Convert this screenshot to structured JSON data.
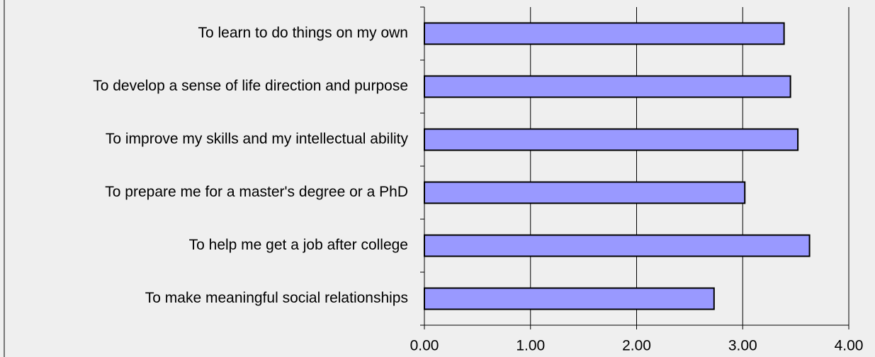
{
  "chart_data": {
    "type": "bar",
    "orientation": "horizontal",
    "categories": [
      "To learn to do things on my own",
      "To develop a sense of life direction and purpose",
      "To improve my skills and my intellectual ability",
      "To prepare me for a master's degree or a PhD",
      "To help me get a job after college",
      "To make meaningful social relationships"
    ],
    "values": [
      3.39,
      3.45,
      3.52,
      3.02,
      3.63,
      2.73
    ],
    "color": "#9999ff",
    "xlim": [
      0,
      4
    ],
    "xticks": [
      {
        "value": 0,
        "label": "0.00"
      },
      {
        "value": 1,
        "label": "1.00"
      },
      {
        "value": 2,
        "label": "2.00"
      },
      {
        "value": 3,
        "label": "3.00"
      },
      {
        "value": 4,
        "label": "4.00"
      }
    ],
    "grid": true
  }
}
